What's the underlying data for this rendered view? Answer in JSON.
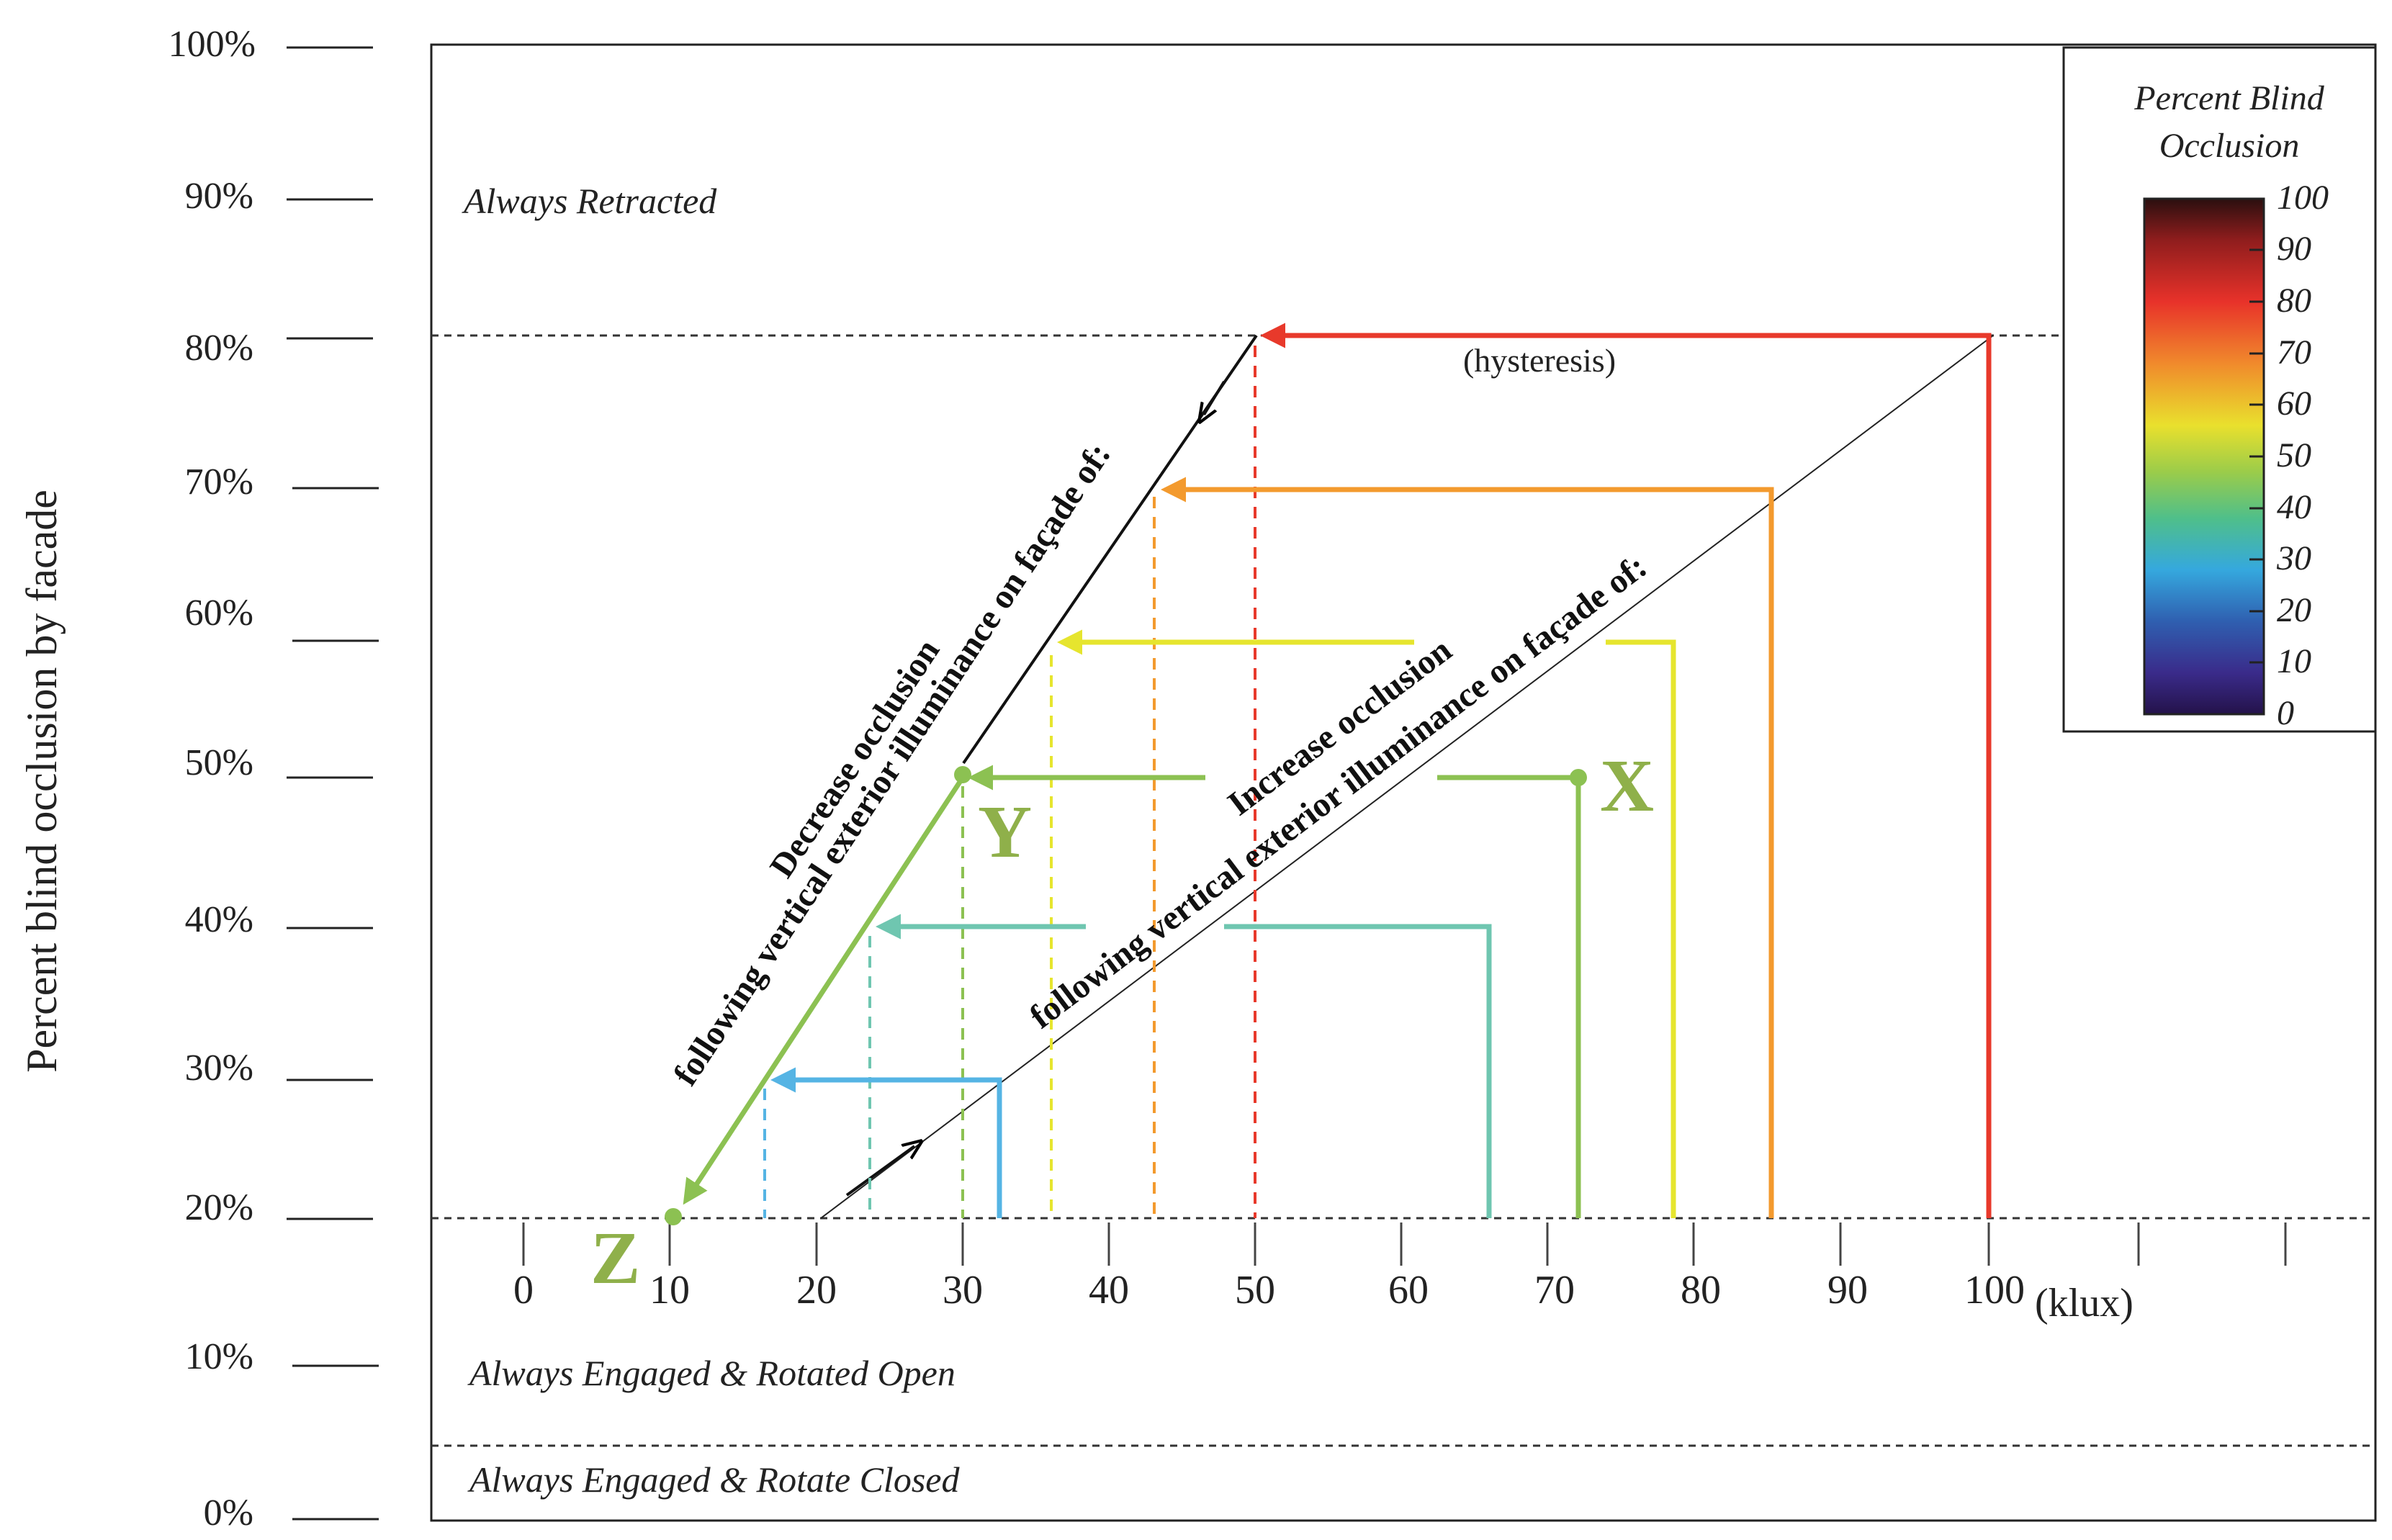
{
  "y_axis": {
    "label": "Percent blind occlusion by facade",
    "ticks": [
      "100%",
      "90%",
      "80%",
      "70%",
      "60%",
      "50%",
      "40%",
      "30%",
      "20%",
      "10%",
      "0%"
    ]
  },
  "x_axis": {
    "ticks": [
      "0",
      "10",
      "20",
      "30",
      "40",
      "50",
      "60",
      "70",
      "80",
      "90",
      "100"
    ],
    "unit": "(klux)"
  },
  "zones": {
    "retracted": "Always Retracted",
    "engaged_open": "Always Engaged & Rotated Open",
    "engaged_closed": "Always Engaged & Rotate Closed"
  },
  "annotations": {
    "hysteresis": "(hysteresis)",
    "decrease_line1": "Decrease occlusion",
    "decrease_line2": "following vertical exterior illuminance on façade of:",
    "increase_line1": "Increase occlusion",
    "increase_line2": "following vertical exterior illuminance on façade of:"
  },
  "points": {
    "x": "X",
    "y": "Y",
    "z": "Z"
  },
  "legend": {
    "title_line1": "Percent Blind",
    "title_line2": "Occlusion",
    "ticks": [
      "100",
      "90",
      "80",
      "70",
      "60",
      "50",
      "40",
      "30",
      "20",
      "10",
      "0"
    ]
  },
  "colors": {
    "red": "#e8392b",
    "orange": "#f39a2e",
    "yellow": "#e6e52e",
    "green": "#8cc152",
    "teal": "#6fc6b0",
    "blue": "#55b4e4",
    "point_label": "#8fb04a"
  }
}
